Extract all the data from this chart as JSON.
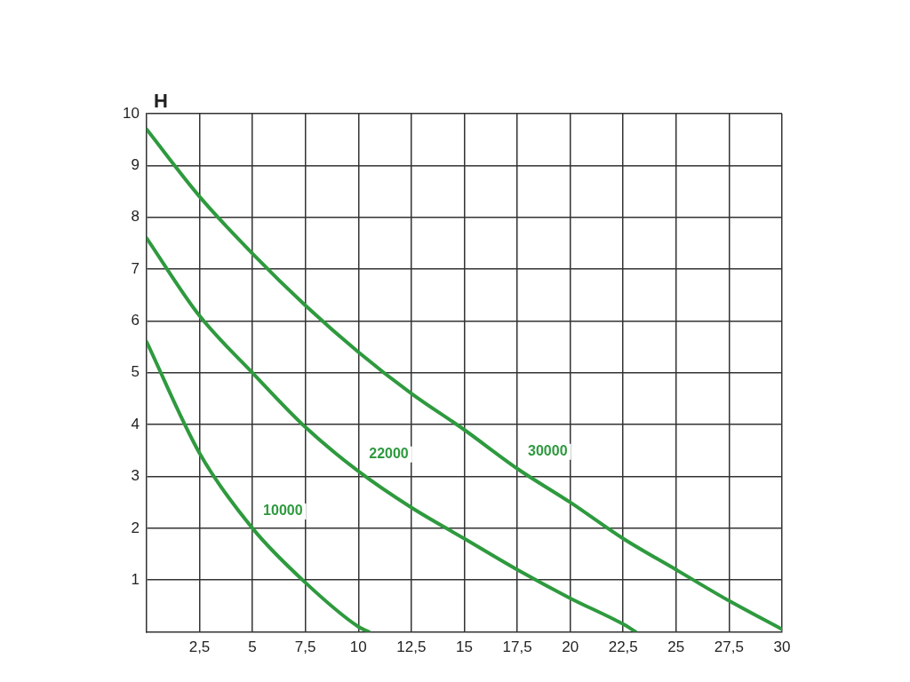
{
  "chart_data": {
    "type": "line",
    "ylabel": "H",
    "xlim": [
      0,
      30
    ],
    "ylim": [
      0,
      10
    ],
    "xticks": [
      {
        "value": 2.5,
        "label": "2,5"
      },
      5,
      {
        "value": 7.5,
        "label": "7,5"
      },
      10,
      {
        "value": 12.5,
        "label": "12,5"
      },
      15,
      {
        "value": 17.5,
        "label": "17,5"
      },
      20,
      {
        "value": 22.5,
        "label": "22,5"
      },
      25,
      {
        "value": 27.5,
        "label": "27,5"
      },
      30
    ],
    "yticks": [
      1,
      2,
      3,
      4,
      5,
      6,
      7,
      8,
      9,
      10
    ],
    "grid": true,
    "legend": false,
    "marker": "none",
    "line_style": "solid",
    "series": [
      {
        "name": "10000",
        "color": "#2e9a3e",
        "x": [
          0,
          2.5,
          5,
          7.5,
          10,
          10.5
        ],
        "values": [
          5.6,
          3.45,
          2.0,
          0.95,
          0.1,
          0
        ]
      },
      {
        "name": "22000",
        "color": "#2e9a3e",
        "x": [
          0,
          2.5,
          5,
          7.5,
          10,
          12.5,
          15,
          17.5,
          20,
          22.5,
          23.1
        ],
        "values": [
          7.6,
          6.1,
          5.0,
          3.95,
          3.1,
          2.4,
          1.8,
          1.2,
          0.65,
          0.15,
          0
        ]
      },
      {
        "name": "30000",
        "color": "#2e9a3e",
        "x": [
          0,
          2.5,
          5,
          7.5,
          10,
          12.5,
          15,
          17.5,
          20,
          22.5,
          25,
          27.5,
          30
        ],
        "values": [
          9.7,
          8.4,
          7.3,
          6.3,
          5.4,
          4.6,
          3.9,
          3.15,
          2.5,
          1.8,
          1.2,
          0.6,
          0.05
        ]
      }
    ]
  }
}
